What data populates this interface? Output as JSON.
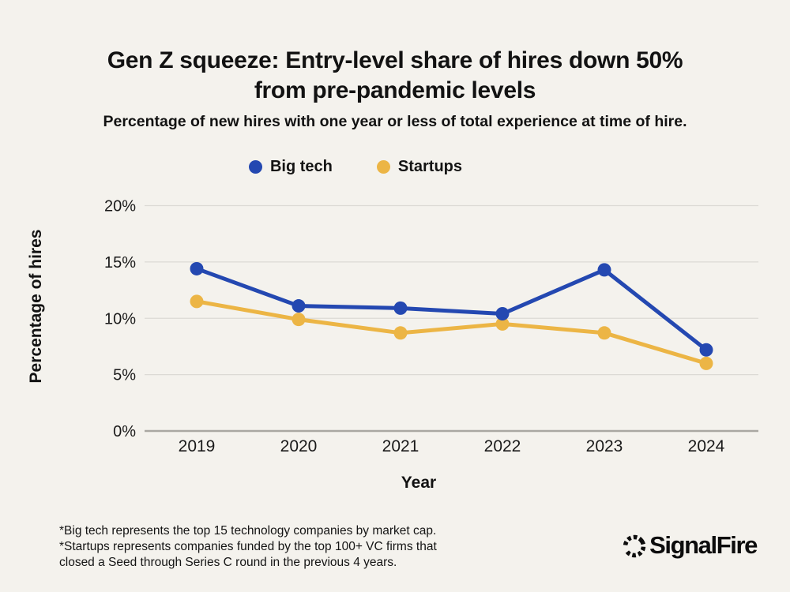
{
  "header": {
    "title_lines": [
      "Gen Z squeeze: Entry-level share of hires down 50%",
      "from pre-pandemic levels"
    ],
    "subtitle": "Percentage of new hires with one year or less of total experience at time of hire."
  },
  "legend": {
    "items": [
      {
        "label": "Big tech",
        "color": "#2448b1"
      },
      {
        "label": "Startups",
        "color": "#ecb545"
      }
    ]
  },
  "chart_data": {
    "type": "line",
    "x": [
      "2019",
      "2020",
      "2021",
      "2022",
      "2023",
      "2024"
    ],
    "series": [
      {
        "name": "Big tech",
        "color": "#2448b1",
        "values": [
          14.4,
          11.1,
          10.9,
          10.4,
          14.3,
          7.2
        ]
      },
      {
        "name": "Startups",
        "color": "#ecb545",
        "values": [
          11.5,
          9.9,
          8.7,
          9.5,
          8.7,
          6.0
        ]
      }
    ],
    "title": "Gen Z squeeze: Entry-level share of hires down 50% from pre-pandemic levels",
    "xlabel": "Year",
    "ylabel": "Percentage of hires",
    "ylim": [
      0,
      20
    ],
    "yticks": [
      0,
      5,
      10,
      15,
      20
    ],
    "ytick_suffix": "%",
    "grid": true,
    "legend_position": "top"
  },
  "footnotes": {
    "lines": [
      "*Big tech represents the top 15 technology companies by market cap.",
      "*Startups represents companies funded by the top 100+ VC firms that",
      "closed a Seed through Series C round in the previous 4 years."
    ]
  },
  "branding": {
    "logo_text": "SignalFire"
  },
  "theme": {
    "background": "#f4f2ed",
    "grid_color": "#dcdad5",
    "axis_color": "#a9a7a2",
    "text_color": "#161616"
  }
}
